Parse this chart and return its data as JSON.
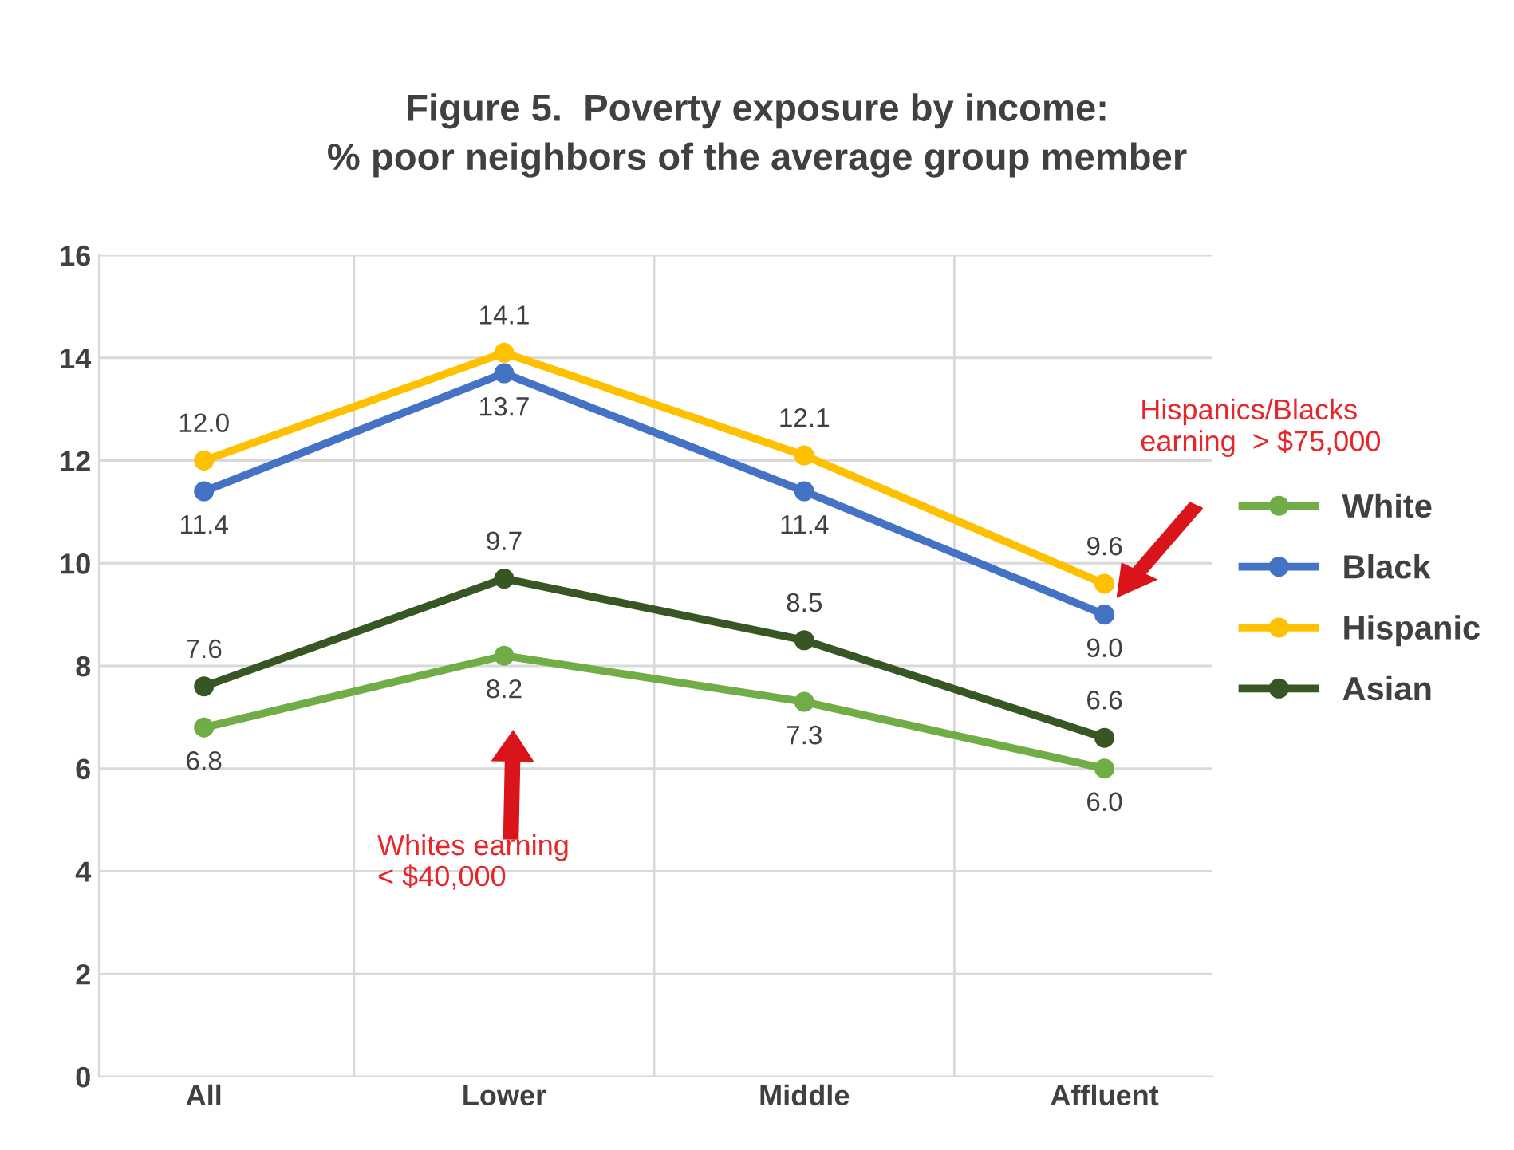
{
  "chart_data": {
    "type": "line",
    "title": "Figure 5.  Poverty exposure by income:\n% poor neighbors of the average group member",
    "categories": [
      "All",
      "Lower",
      "Middle",
      "Affluent"
    ],
    "series": [
      {
        "name": "White",
        "color": "#70ad47",
        "values": [
          6.8,
          8.2,
          7.3,
          6.0
        ],
        "value_labels": [
          "6.8",
          "8.2",
          "7.3",
          "6.0"
        ]
      },
      {
        "name": "Black",
        "color": "#4472c4",
        "values": [
          11.4,
          13.7,
          11.4,
          9.0
        ],
        "value_labels": [
          "11.4",
          "13.7",
          "11.4",
          "9.0"
        ]
      },
      {
        "name": "Hispanic",
        "color": "#ffc000",
        "values": [
          12.0,
          14.1,
          12.1,
          9.6
        ],
        "value_labels": [
          "12.0",
          "14.1",
          "12.1",
          "9.6"
        ]
      },
      {
        "name": "Asian",
        "color": "#375623",
        "values": [
          7.6,
          9.7,
          8.5,
          6.6
        ],
        "value_labels": [
          "7.6",
          "9.7",
          "8.5",
          "6.6"
        ]
      }
    ],
    "ylim": [
      0,
      16
    ],
    "yticks": [
      0,
      2,
      4,
      6,
      8,
      10,
      12,
      14,
      16
    ],
    "grid": true,
    "legend": "right",
    "marker": "circle",
    "line_style": "solid",
    "annotations": [
      "Hispanics/Blacks\nearning  > $75,000",
      "Whites earning\n< $40,000"
    ]
  }
}
